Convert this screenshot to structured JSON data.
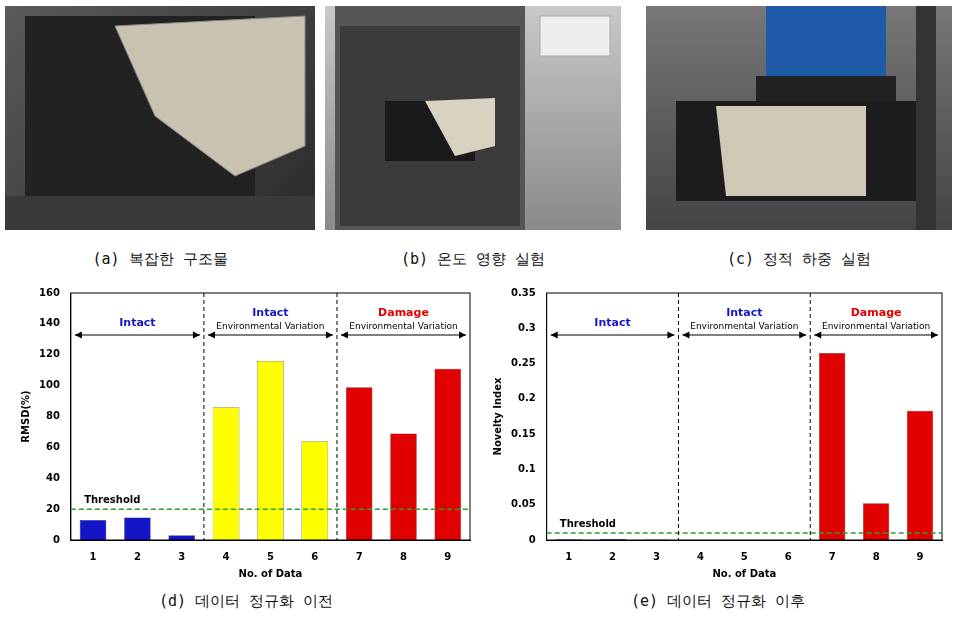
{
  "panels": [
    {
      "caption": "(a) 복잡한 구조물"
    },
    {
      "caption": "(b) 온도 영향 실험"
    },
    {
      "caption": "(c) 정적 하중 실험"
    }
  ],
  "chart_data": [
    {
      "type": "bar",
      "title": "(d) 데이터 정규화 이전",
      "x_label": "No. of Data",
      "y_label": "RMSD(%)",
      "categories": [
        1,
        2,
        3,
        4,
        5,
        6,
        7,
        8,
        9
      ],
      "values": [
        13,
        14.5,
        3,
        86,
        116,
        64,
        99,
        69,
        111
      ],
      "colors": [
        "#1515c8",
        "#1515c8",
        "#1515c8",
        "#ffff00",
        "#ffff00",
        "#ffff00",
        "#e00000",
        "#e00000",
        "#e00000"
      ],
      "ylim": [
        0,
        160
      ],
      "yticks": [
        0,
        20,
        40,
        60,
        80,
        100,
        120,
        140,
        160
      ],
      "grid": false,
      "threshold": 20,
      "threshold_label": "Threshold",
      "annotations": [
        {
          "from": 1,
          "to": 3,
          "text": "Intact",
          "color": "#1515c8"
        },
        {
          "from": 4,
          "to": 6,
          "text": "Intact",
          "subtext": "Environmental Variation",
          "color": "#1515c8"
        },
        {
          "from": 7,
          "to": 9,
          "text": "Damage",
          "subtext": "Environmental Variation",
          "color": "#e00000"
        }
      ]
    },
    {
      "type": "bar",
      "title": "(e) 데이터 정규화 이후",
      "x_label": "No. of Data",
      "y_label": "Novelty Index",
      "categories": [
        1,
        2,
        3,
        4,
        5,
        6,
        7,
        8,
        9
      ],
      "values": [
        0.001,
        0.0015,
        0.0008,
        0.0003,
        0.0003,
        0.0003,
        0.265,
        0.052,
        0.183
      ],
      "colors": [
        "#1515c8",
        "#1515c8",
        "#1515c8",
        "#ffff00",
        "#ffff00",
        "#ffff00",
        "#e00000",
        "#e00000",
        "#e00000"
      ],
      "ylim": [
        0,
        0.35
      ],
      "yticks": [
        0,
        0.05,
        0.1,
        0.15,
        0.2,
        0.25,
        0.3,
        0.35
      ],
      "grid": false,
      "threshold": 0.01,
      "threshold_label": "Threshold",
      "annotations": [
        {
          "from": 1,
          "to": 3,
          "text": "Intact",
          "color": "#1515c8"
        },
        {
          "from": 4,
          "to": 6,
          "text": "Intact",
          "subtext": "Environmental Variation",
          "color": "#1515c8"
        },
        {
          "from": 7,
          "to": 9,
          "text": "Damage",
          "subtext": "Environmental Variation",
          "color": "#e00000"
        }
      ]
    }
  ]
}
